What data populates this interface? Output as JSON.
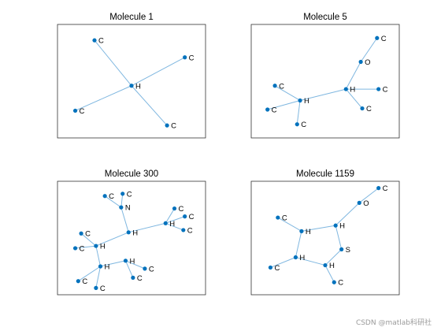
{
  "figure": {
    "watermark": "CSDN @matlab科研社"
  },
  "colors": {
    "node": "#0072BD",
    "edge": "#7fb7e0",
    "frame": "#262626"
  },
  "chart_data": [
    {
      "type": "graph",
      "title": "Molecule 1",
      "xlim": [
        0,
        10
      ],
      "ylim": [
        0,
        10
      ],
      "nodes": [
        {
          "label": "C",
          "x": 2.5,
          "y": 8.6
        },
        {
          "label": "C",
          "x": 8.6,
          "y": 7.1
        },
        {
          "label": "H",
          "x": 5.0,
          "y": 4.6
        },
        {
          "label": "C",
          "x": 1.2,
          "y": 2.4
        },
        {
          "label": "C",
          "x": 7.4,
          "y": 1.1
        }
      ],
      "edges": [
        [
          0,
          2
        ],
        [
          1,
          2
        ],
        [
          2,
          3
        ],
        [
          2,
          4
        ]
      ]
    },
    {
      "type": "graph",
      "title": "Molecule 5",
      "xlim": [
        0,
        10
      ],
      "ylim": [
        0,
        10
      ],
      "nodes": [
        {
          "label": "C",
          "x": 8.5,
          "y": 8.8
        },
        {
          "label": "O",
          "x": 7.4,
          "y": 6.7
        },
        {
          "label": "H",
          "x": 6.4,
          "y": 4.3
        },
        {
          "label": "C",
          "x": 8.6,
          "y": 4.3
        },
        {
          "label": "C",
          "x": 7.5,
          "y": 2.6
        },
        {
          "label": "C",
          "x": 1.6,
          "y": 4.6
        },
        {
          "label": "H",
          "x": 3.3,
          "y": 3.3
        },
        {
          "label": "C",
          "x": 1.1,
          "y": 2.5
        },
        {
          "label": "C",
          "x": 3.1,
          "y": 1.2
        }
      ],
      "edges": [
        [
          0,
          1
        ],
        [
          1,
          2
        ],
        [
          2,
          3
        ],
        [
          2,
          4
        ],
        [
          2,
          6
        ],
        [
          5,
          6
        ],
        [
          6,
          7
        ],
        [
          6,
          8
        ]
      ]
    },
    {
      "type": "graph",
      "title": "Molecule 300",
      "xlim": [
        0,
        10
      ],
      "ylim": [
        0,
        10
      ],
      "nodes": [
        {
          "label": "C",
          "x": 3.2,
          "y": 8.7
        },
        {
          "label": "C",
          "x": 4.4,
          "y": 8.9
        },
        {
          "label": "N",
          "x": 4.3,
          "y": 7.7
        },
        {
          "label": "C",
          "x": 7.9,
          "y": 7.6
        },
        {
          "label": "C",
          "x": 8.6,
          "y": 6.9
        },
        {
          "label": "H",
          "x": 7.3,
          "y": 6.3
        },
        {
          "label": "C",
          "x": 8.5,
          "y": 5.7
        },
        {
          "label": "H",
          "x": 4.8,
          "y": 5.5
        },
        {
          "label": "C",
          "x": 1.6,
          "y": 5.4
        },
        {
          "label": "C",
          "x": 1.2,
          "y": 4.1
        },
        {
          "label": "H",
          "x": 2.6,
          "y": 4.3
        },
        {
          "label": "H",
          "x": 4.6,
          "y": 3.0
        },
        {
          "label": "H",
          "x": 2.9,
          "y": 2.5
        },
        {
          "label": "C",
          "x": 5.9,
          "y": 2.3
        },
        {
          "label": "C",
          "x": 5.1,
          "y": 1.5
        },
        {
          "label": "C",
          "x": 1.4,
          "y": 1.2
        },
        {
          "label": "C",
          "x": 2.6,
          "y": 0.6
        }
      ],
      "edges": [
        [
          0,
          2
        ],
        [
          1,
          2
        ],
        [
          2,
          7
        ],
        [
          3,
          5
        ],
        [
          4,
          5
        ],
        [
          5,
          6
        ],
        [
          5,
          7
        ],
        [
          7,
          10
        ],
        [
          8,
          10
        ],
        [
          9,
          10
        ],
        [
          10,
          12
        ],
        [
          12,
          11
        ],
        [
          11,
          13
        ],
        [
          11,
          14
        ],
        [
          12,
          15
        ],
        [
          12,
          16
        ]
      ]
    },
    {
      "type": "graph",
      "title": "Molecule 1159",
      "xlim": [
        0,
        10
      ],
      "ylim": [
        0,
        10
      ],
      "nodes": [
        {
          "label": "C",
          "x": 8.6,
          "y": 9.4
        },
        {
          "label": "O",
          "x": 7.3,
          "y": 8.1
        },
        {
          "label": "H",
          "x": 5.7,
          "y": 6.1
        },
        {
          "label": "C",
          "x": 1.8,
          "y": 6.8
        },
        {
          "label": "H",
          "x": 3.4,
          "y": 5.6
        },
        {
          "label": "S",
          "x": 6.1,
          "y": 4.0
        },
        {
          "label": "H",
          "x": 3.0,
          "y": 3.3
        },
        {
          "label": "H",
          "x": 5.0,
          "y": 2.6
        },
        {
          "label": "C",
          "x": 1.3,
          "y": 2.4
        },
        {
          "label": "C",
          "x": 5.6,
          "y": 1.1
        }
      ],
      "edges": [
        [
          0,
          1
        ],
        [
          1,
          2
        ],
        [
          2,
          4
        ],
        [
          3,
          4
        ],
        [
          2,
          5
        ],
        [
          4,
          6
        ],
        [
          5,
          7
        ],
        [
          6,
          7
        ],
        [
          6,
          8
        ],
        [
          7,
          9
        ]
      ]
    }
  ]
}
